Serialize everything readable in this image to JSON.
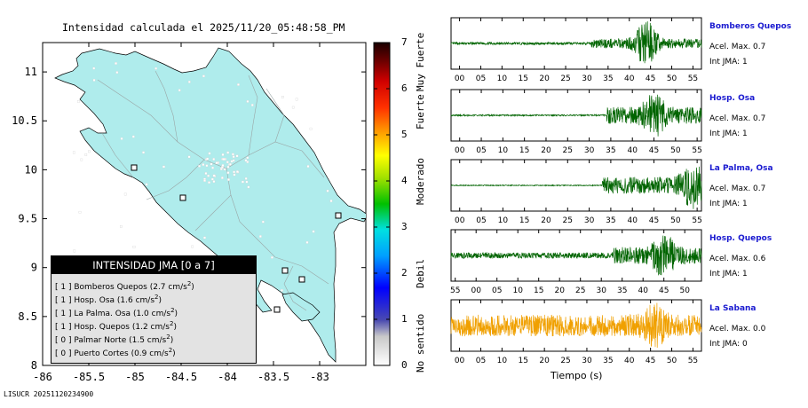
{
  "map": {
    "title": "Intensidad calculada el 2025/11/20_05:48:58_PM",
    "lat_ticks": [
      "11",
      "10.5",
      "10",
      "9.5",
      "9",
      "8.5",
      "8"
    ],
    "lon_ticks": [
      "-86",
      "-85.5",
      "-85",
      "-84.5",
      "-84",
      "-83.5",
      "-83"
    ],
    "lon_range": [
      -86,
      -82.5
    ],
    "lat_range": [
      8,
      11.3
    ],
    "land_color": "#afecec"
  },
  "colorbar": {
    "ticks": [
      "0",
      "1",
      "2",
      "3",
      "4",
      "5",
      "6",
      "7"
    ],
    "categories": [
      "No sentido",
      "Debil",
      "Moderado",
      "Fuerte",
      "Muy Fuerte"
    ],
    "range": [
      0,
      7
    ]
  },
  "legend": {
    "title": "INTENSIDAD JMA [0 a 7]",
    "rows": [
      {
        "level": "[ 1 ]",
        "station": "Bomberos Quepos",
        "value": "(2.7 cm/s",
        "sup": "2",
        "close": ")"
      },
      {
        "level": "[ 1 ]",
        "station": "Hosp. Osa",
        "value": "(1.6 cm/s",
        "sup": "2",
        "close": ")"
      },
      {
        "level": "[ 1 ]",
        "station": "La Palma. Osa",
        "value": "(1.0 cm/s",
        "sup": "2",
        "close": ")"
      },
      {
        "level": "[ 1 ]",
        "station": "Hosp. Quepos",
        "value": "(1.2 cm/s",
        "sup": "2",
        "close": ")"
      },
      {
        "level": "[ 0 ]",
        "station": "Palmar Norte",
        "value": "(1.5 cm/s",
        "sup": "2",
        "close": ")"
      },
      {
        "level": "[ 0 ]",
        "station": "Puerto Cortes",
        "value": "(0.9 cm/s",
        "sup": "2",
        "close": ")"
      }
    ]
  },
  "chart_data": {
    "type": "line",
    "xlabel": "Tiempo (s)",
    "series": [
      {
        "name": "Bomberos Quepos",
        "acel": "Acel. Max. 0.7",
        "int": "Int JMA: 1",
        "color": "#006400",
        "ticks": [
          "00",
          "05",
          "10",
          "15",
          "20",
          "25",
          "30",
          "35",
          "40",
          "45",
          "50",
          "55"
        ],
        "x_range": [
          -2,
          57
        ],
        "onset": 31,
        "peak_at": 44,
        "level_before": 0.05,
        "level_after": 0.2,
        "peak_amp": 1.0
      },
      {
        "name": "Hosp. Osa",
        "acel": "Acel. Max. 0.7",
        "int": "Int JMA: 1",
        "color": "#006400",
        "ticks": [
          "00",
          "05",
          "10",
          "15",
          "20",
          "25",
          "30",
          "35",
          "40",
          "45",
          "50",
          "55"
        ],
        "x_range": [
          -2,
          56
        ],
        "onset": 34,
        "peak_at": 45,
        "level_before": 0.03,
        "level_after": 0.35,
        "peak_amp": 1.0
      },
      {
        "name": "La Palma, Osa",
        "acel": "Acel. Max. 0.7",
        "int": "Int JMA: 1",
        "color": "#006400",
        "ticks": [
          "00",
          "05",
          "10",
          "15",
          "20",
          "25",
          "30",
          "35",
          "40",
          "45",
          "50",
          "55"
        ],
        "x_range": [
          -2,
          56
        ],
        "onset": 33,
        "peak_at": 54,
        "level_before": 0.02,
        "level_after": 0.35,
        "peak_amp": 1.0
      },
      {
        "name": "Hosp. Quepos",
        "acel": "Acel. Max. 0.6",
        "int": "Int JMA: 1",
        "color": "#006400",
        "ticks": [
          "55",
          "00",
          "05",
          "10",
          "15",
          "20",
          "25",
          "30",
          "35",
          "40",
          "45",
          "50"
        ],
        "x_range": [
          54,
          114
        ],
        "onset": 93,
        "peak_at": 105,
        "level_before": 0.12,
        "level_after": 0.35,
        "peak_amp": 1.0
      },
      {
        "name": "La Sabana",
        "acel": "Acel. Max. 0.0",
        "int": "Int JMA: 0",
        "color": "#f0a000",
        "ticks": [
          "00",
          "05",
          "10",
          "15",
          "20",
          "25",
          "30",
          "35",
          "40",
          "45",
          "50",
          "55"
        ],
        "x_range": [
          -2,
          57
        ],
        "onset": 0,
        "peak_at": 46,
        "level_before": 0.35,
        "level_after": 0.45,
        "peak_amp": 1.0
      }
    ]
  },
  "footer": "LISUCR 20251120234900"
}
